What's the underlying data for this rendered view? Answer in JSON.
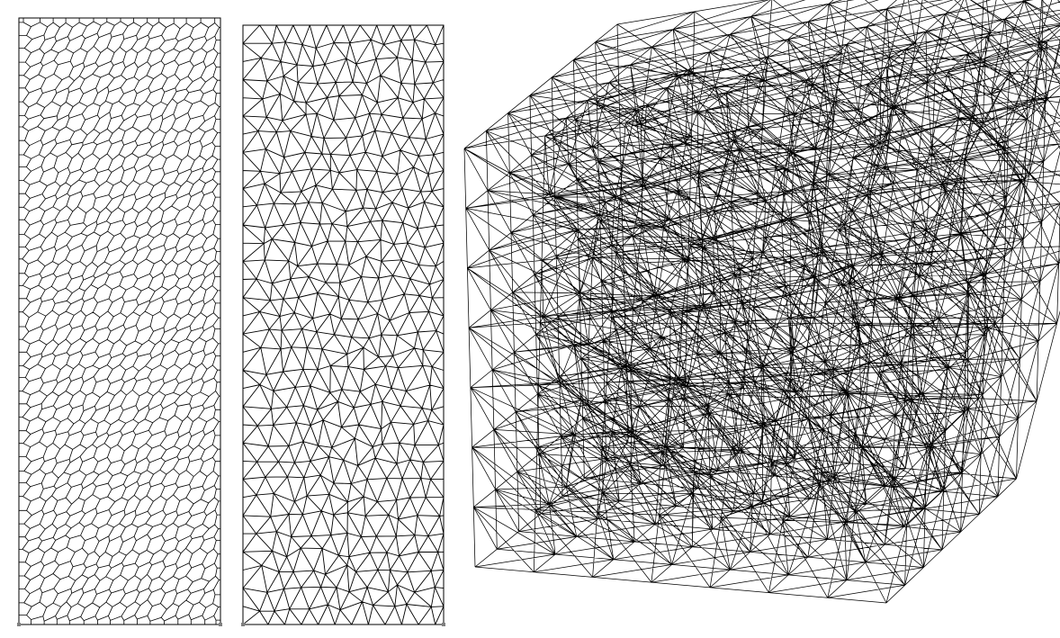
{
  "figure": {
    "panels": [
      {
        "id": "polygonal-mesh-2d",
        "kind": "voronoi-like polygon mesh",
        "grid_cols": 15,
        "grid_rows": 46
      },
      {
        "id": "triangle-mesh-2d",
        "kind": "triangular mesh",
        "grid_cols": 12,
        "grid_rows": 33
      },
      {
        "id": "tetrahedral-mesh-3d",
        "kind": "tetrahedral cube mesh",
        "grid_divisions": 7
      }
    ],
    "colors": {
      "line": "#000000",
      "background": "#ffffff",
      "corner_marker": "#808080"
    }
  }
}
